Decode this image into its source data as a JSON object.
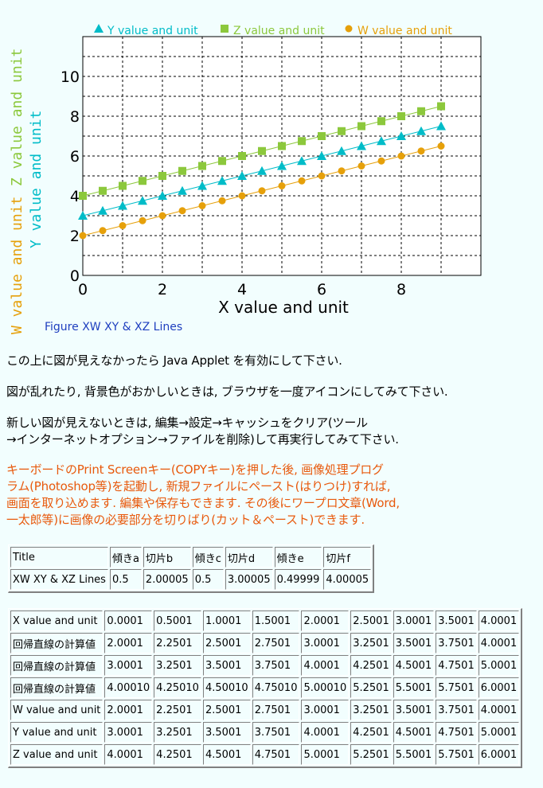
{
  "chart_data": {
    "type": "line",
    "title": "",
    "caption": "Figure  XW XY & XZ Lines",
    "xlabel": "X value and unit",
    "ylabel": [
      "W value and unit",
      "Z value and unit",
      "Y value and unit"
    ],
    "xlim": [
      0,
      10
    ],
    "ylim": [
      0,
      12
    ],
    "xticks": [
      "0",
      "2",
      "4",
      "6",
      "8"
    ],
    "yticks": [
      "0",
      "2",
      "4",
      "6",
      "8",
      "10"
    ],
    "grid": true,
    "legend_position": "top",
    "x": [
      0,
      0.5,
      1,
      1.5,
      2,
      2.5,
      3,
      3.5,
      4,
      4.5,
      5,
      5.5,
      6,
      6.5,
      7,
      7.5,
      8,
      8.5,
      9
    ],
    "series": [
      {
        "name": "Y value and unit",
        "color": "#00bcc8",
        "marker": "triangle",
        "values": [
          3,
          3.25,
          3.5,
          3.75,
          4,
          4.25,
          4.5,
          4.75,
          5,
          5.25,
          5.5,
          5.75,
          6,
          6.25,
          6.5,
          6.75,
          7,
          7.25,
          7.5
        ]
      },
      {
        "name": "Z value and unit",
        "color": "#8cc83c",
        "marker": "square",
        "values": [
          4,
          4.25,
          4.5,
          4.75,
          5,
          5.25,
          5.5,
          5.75,
          6,
          6.25,
          6.5,
          6.75,
          7,
          7.25,
          7.5,
          7.75,
          8,
          8.25,
          8.5
        ]
      },
      {
        "name": "W value and unit",
        "color": "#e6a00a",
        "marker": "circle",
        "values": [
          2,
          2.25,
          2.5,
          2.75,
          3,
          3.25,
          3.5,
          3.75,
          4,
          4.25,
          4.5,
          4.75,
          5,
          5.25,
          5.5,
          5.75,
          6,
          6.25,
          6.5
        ]
      }
    ]
  },
  "paragraphs": {
    "p1": "この上に図が見えなかったら Java Applet を有効にして下さい.",
    "p2": "図が乱れたり, 背景色がおかしいときは, ブラウザを一度アイコンにしてみて下さい.",
    "p3": [
      "新しい図が見えないときは, 編集→設定→キャッシュをクリア(ツール",
      "→インターネットオプション→ファイルを削除)して再実行してみて下さい."
    ],
    "p4": [
      "キーボードのPrint Screenキー(COPYキー)を押した後, 画像処理プログ",
      "ラム(Photoshop等)を起動し, 新規ファイルにペースト(はりつけ)すれば,",
      "画面を取り込めます. 編集や保存もできます. その後にワープロ文章(Word,",
      "一太郎等)に画像の必要部分を切りばり(カット＆ペースト)できます."
    ]
  },
  "table1": {
    "rows": [
      [
        "Title",
        "傾きa",
        "切片b",
        "傾きc",
        "切片d",
        "傾きe",
        "切片f"
      ],
      [
        "XW XY & XZ Lines",
        "0.5",
        "2.00005",
        "0.5",
        "3.00005",
        "0.49999",
        "4.00005"
      ]
    ]
  },
  "table2": {
    "rows": [
      [
        "X value and unit",
        "0.0001",
        "0.5001",
        "1.0001",
        "1.5001",
        "2.0001",
        "2.5001",
        "3.0001",
        "3.5001",
        "4.0001"
      ],
      [
        "回帰直線の計算値",
        "2.0001",
        "2.2501",
        "2.5001",
        "2.7501",
        "3.0001",
        "3.2501",
        "3.5001",
        "3.7501",
        "4.0001"
      ],
      [
        "回帰直線の計算値",
        "3.0001",
        "3.2501",
        "3.5001",
        "3.7501",
        "4.0001",
        "4.2501",
        "4.5001",
        "4.7501",
        "5.0001"
      ],
      [
        "回帰直線の計算値",
        "4.00010",
        "4.25010",
        "4.50010",
        "4.75010",
        "5.00010",
        "5.2501",
        "5.5001",
        "5.7501",
        "6.0001"
      ],
      [
        "W value and unit",
        "2.0001",
        "2.2501",
        "2.5001",
        "2.7501",
        "3.0001",
        "3.2501",
        "3.5001",
        "3.7501",
        "4.0001"
      ],
      [
        "Y value and unit",
        "3.0001",
        "3.2501",
        "3.5001",
        "3.7501",
        "4.0001",
        "4.2501",
        "4.5001",
        "4.7501",
        "5.0001"
      ],
      [
        "Z value and unit",
        "4.0001",
        "4.2501",
        "4.5001",
        "4.7501",
        "5.0001",
        "5.2501",
        "5.5001",
        "5.7501",
        "6.0001"
      ]
    ]
  }
}
